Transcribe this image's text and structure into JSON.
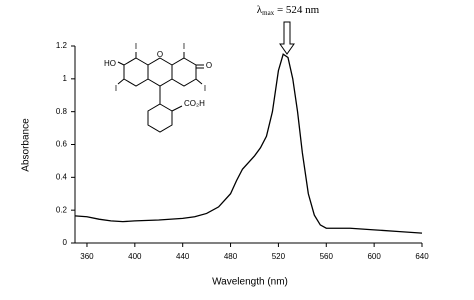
{
  "chart_data": {
    "type": "line",
    "x_label": "Wavelength (nm)",
    "y_label": "Absorbance",
    "annotation": {
      "symbol": "λ",
      "subscript": "max",
      "text": " = 524 nm"
    },
    "structure_labels": [
      "HO",
      "I",
      "I",
      "O",
      "O",
      "I",
      "I",
      "CO₂H"
    ],
    "x": [
      350,
      360,
      370,
      380,
      390,
      400,
      420,
      440,
      450,
      460,
      470,
      480,
      485,
      490,
      495,
      500,
      505,
      510,
      515,
      520,
      524,
      528,
      532,
      536,
      540,
      545,
      550,
      555,
      560,
      570,
      580,
      600,
      620,
      640
    ],
    "series": [
      {
        "color": "#000000",
        "values": [
          0.165,
          0.16,
          0.145,
          0.135,
          0.13,
          0.135,
          0.14,
          0.15,
          0.16,
          0.18,
          0.22,
          0.3,
          0.38,
          0.45,
          0.49,
          0.53,
          0.58,
          0.65,
          0.8,
          1.05,
          1.15,
          1.13,
          1.0,
          0.8,
          0.55,
          0.3,
          0.17,
          0.11,
          0.09,
          0.09,
          0.09,
          0.08,
          0.07,
          0.06
        ]
      }
    ],
    "xlim": [
      350,
      640
    ],
    "xticks": [
      360,
      400,
      440,
      480,
      520,
      560,
      600,
      640
    ],
    "ylim": [
      0,
      1.2
    ],
    "yticks": [
      0,
      0.2,
      0.4,
      0.6,
      0.8,
      1,
      1.2
    ]
  }
}
